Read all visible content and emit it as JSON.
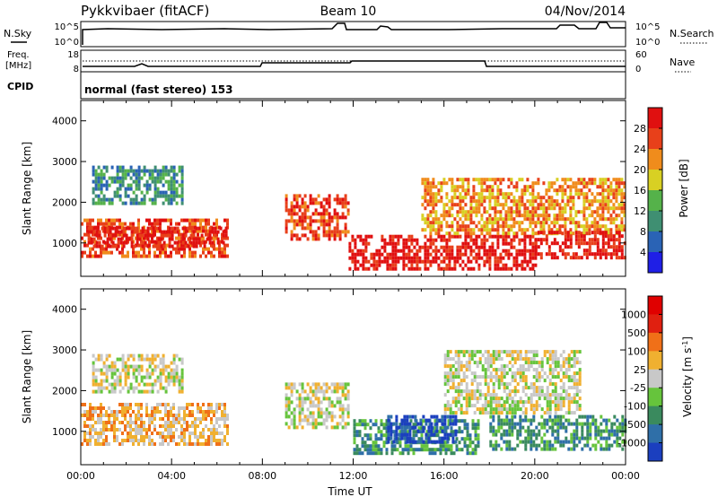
{
  "header": {
    "station": "Pykkvibaer (fitACF)",
    "beam": "Beam 10",
    "date": "04/Nov/2014"
  },
  "status_panels": {
    "nsky": {
      "label": "N.Sky",
      "right_label": "N.Search",
      "left_ticks": [
        "10^5",
        "10^0"
      ],
      "right_ticks": [
        "10^5",
        "10^0"
      ]
    },
    "freq": {
      "label_line1": "Freq.",
      "label_line2": "[MHz]",
      "right_label": "Nave",
      "left_ticks": [
        "18",
        "8"
      ],
      "right_ticks": [
        "60",
        "0"
      ]
    },
    "cpid": {
      "label": "CPID",
      "value": "normal (fast stereo) 153"
    }
  },
  "chart_data": [
    {
      "type": "heatmap",
      "name": "power",
      "xlabel": "",
      "ylabel": "Slant Range [km]",
      "xlim": [
        0,
        24
      ],
      "ylim": [
        180,
        4500
      ],
      "yticks": [
        "1000",
        "2000",
        "3000",
        "4000"
      ],
      "colorbar_label": "Power [dB]",
      "colorbar_ticks": [
        "4",
        "8",
        "12",
        "16",
        "20",
        "24",
        "28"
      ],
      "colors": [
        "#1f1fe6",
        "#2a63b5",
        "#3f8f72",
        "#55b24a",
        "#d8d023",
        "#f08c1c",
        "#e8401a",
        "#e01010"
      ],
      "regions": [
        {
          "t0": 0.0,
          "t1": 6.5,
          "r0": 700,
          "r1": 1600,
          "level": 6
        },
        {
          "t0": 0.3,
          "t1": 6.4,
          "r0": 900,
          "r1": 1400,
          "level": 7
        },
        {
          "t0": 0.5,
          "t1": 4.5,
          "r0": 2000,
          "r1": 2900,
          "level": 2
        },
        {
          "t0": 9.0,
          "t1": 11.8,
          "r0": 1100,
          "r1": 2200,
          "level": 6
        },
        {
          "t0": 11.8,
          "t1": 20.0,
          "r0": 400,
          "r1": 1200,
          "level": 7
        },
        {
          "t0": 15.0,
          "t1": 24.0,
          "r0": 1200,
          "r1": 2600,
          "level": 5
        },
        {
          "t0": 20.0,
          "t1": 24.0,
          "r0": 600,
          "r1": 1300,
          "level": 7
        }
      ]
    },
    {
      "type": "heatmap",
      "name": "velocity",
      "xlabel": "Time UT",
      "ylabel": "Slant Range [km]",
      "xlim": [
        0,
        24
      ],
      "ylim": [
        180,
        4500
      ],
      "xticks": [
        "00:00",
        "04:00",
        "08:00",
        "12:00",
        "16:00",
        "20:00",
        "00:00"
      ],
      "yticks": [
        "1000",
        "2000",
        "3000",
        "4000"
      ],
      "colorbar_label": "Velocity [m s",
      "colorbar_label_sup": "-1",
      "colorbar_label_end": "]",
      "colorbar_ticks": [
        "1000",
        "500",
        "100",
        "25",
        "-25",
        "-100",
        "-500",
        "-1000"
      ],
      "colors": [
        "#1b3fbf",
        "#2f6fa8",
        "#3a8a5e",
        "#66c43c",
        "#c8c8c8",
        "#f0b030",
        "#f07018",
        "#e02010",
        "#e00000"
      ],
      "regions": [
        {
          "t0": 0.0,
          "t1": 6.5,
          "r0": 700,
          "r1": 1700,
          "level": 5
        },
        {
          "t0": 0.5,
          "t1": 4.5,
          "r0": 2000,
          "r1": 2900,
          "level": 4
        },
        {
          "t0": 9.0,
          "t1": 11.8,
          "r0": 1100,
          "r1": 2200,
          "level": 4
        },
        {
          "t0": 12.0,
          "t1": 17.5,
          "r0": 500,
          "r1": 1300,
          "level": 2
        },
        {
          "t0": 13.5,
          "t1": 16.5,
          "r0": 700,
          "r1": 1400,
          "level": 0
        },
        {
          "t0": 16.0,
          "t1": 22.0,
          "r0": 1500,
          "r1": 3000,
          "level": 4
        },
        {
          "t0": 18.0,
          "t1": 24.0,
          "r0": 600,
          "r1": 1400,
          "level": 2
        }
      ]
    }
  ]
}
